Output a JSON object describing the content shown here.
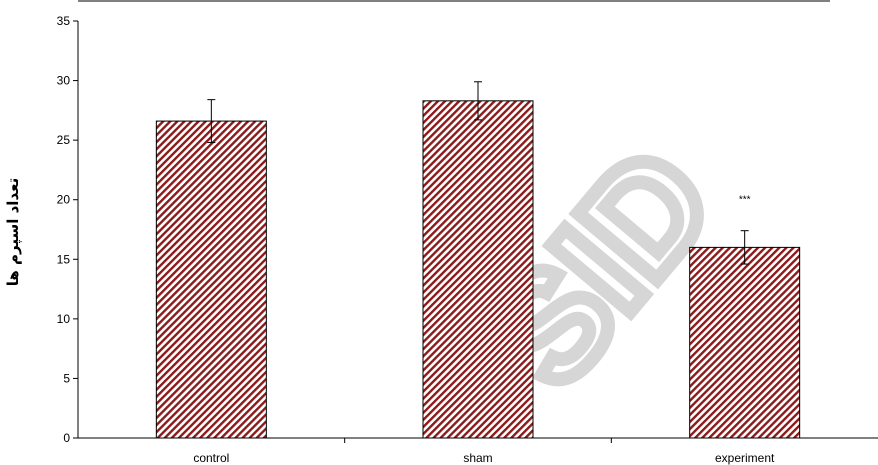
{
  "chart_data": {
    "type": "bar",
    "title": "",
    "xlabel": "",
    "ylabel": "تعداد اسپرم ها",
    "categories": [
      "control",
      "sham",
      "experiment"
    ],
    "values": [
      26.6,
      28.3,
      16.0
    ],
    "errors": [
      1.8,
      1.6,
      1.4
    ],
    "annotations": [
      {
        "category": "experiment",
        "text": "***"
      }
    ],
    "ylim": [
      0,
      35
    ],
    "yticks": [
      0,
      5,
      10,
      15,
      20,
      25,
      30,
      35
    ],
    "grid": false,
    "bar_fill": "#8b1a1a",
    "bar_pattern": "diagonal-hatch"
  },
  "watermark": "SID"
}
